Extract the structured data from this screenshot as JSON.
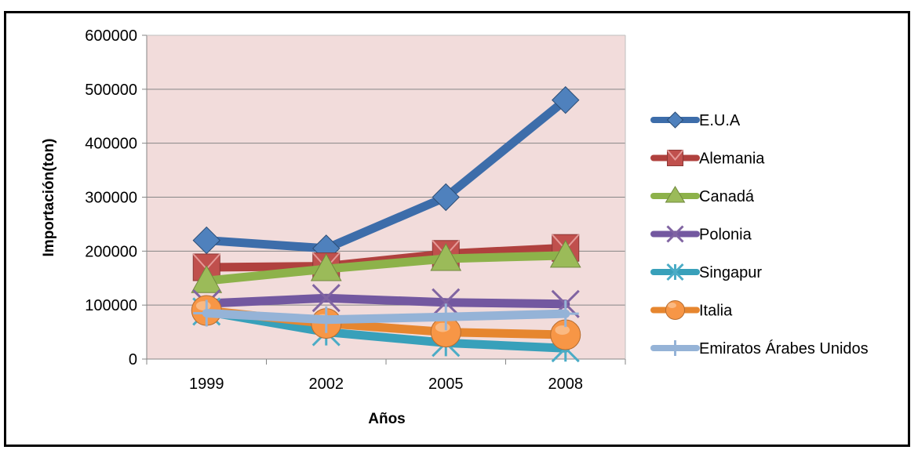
{
  "chart_data": {
    "type": "line",
    "title": "",
    "xlabel": "Años",
    "ylabel": "Importación(ton)",
    "categories": [
      "1999",
      "2002",
      "2005",
      "2008"
    ],
    "ylim": [
      0,
      600000
    ],
    "yticks": [
      0,
      100000,
      200000,
      300000,
      400000,
      500000,
      600000
    ],
    "ytick_labels": [
      "0",
      "100000",
      "200000",
      "300000",
      "400000",
      "500000",
      "600000"
    ],
    "grid": true,
    "plot_background": "#f2dcdb",
    "legend_position": "right",
    "series": [
      {
        "name": "E.U.A",
        "values": [
          220000,
          205000,
          300000,
          480000
        ],
        "color": "#4f81bd",
        "line_color": "#3d6daa",
        "marker": "diamond"
      },
      {
        "name": "Alemania",
        "values": [
          170000,
          172000,
          195000,
          206000
        ],
        "color": "#c0504d",
        "line_color": "#b0413e",
        "marker": "square"
      },
      {
        "name": "Canadá",
        "values": [
          145000,
          167000,
          186000,
          192000
        ],
        "color": "#9bbb59",
        "line_color": "#8db24a",
        "marker": "triangle"
      },
      {
        "name": "Polonia",
        "values": [
          103000,
          113000,
          105000,
          102000
        ],
        "color": "#8064a2",
        "line_color": "#7358a0",
        "marker": "x"
      },
      {
        "name": "Singapur",
        "values": [
          88000,
          50000,
          30000,
          20000
        ],
        "color": "#4bacc6",
        "line_color": "#38a0ba",
        "marker": "star"
      },
      {
        "name": "Italia",
        "values": [
          90000,
          66000,
          50000,
          45000
        ],
        "color": "#f79646",
        "line_color": "#e6862f",
        "marker": "circle"
      },
      {
        "name": "Emiratos Árabes Unidos",
        "values": [
          85000,
          73000,
          78000,
          84000
        ],
        "color": "#95b3d7",
        "line_color": "#95b3d7",
        "marker": "plus"
      }
    ]
  }
}
